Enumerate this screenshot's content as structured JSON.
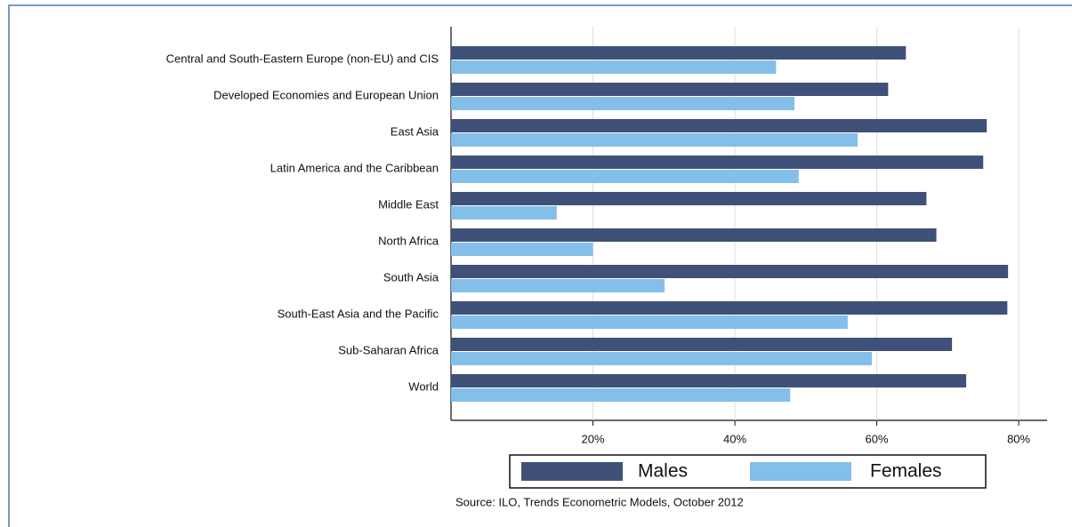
{
  "chart_data": {
    "type": "barh",
    "categories": [
      "Central and South-Eastern Europe (non-EU) and CIS",
      "Developed Economies and European Union",
      "East Asia",
      "Latin America and the Caribbean",
      "Middle East",
      "North Africa",
      "South Asia",
      "South-East Asia and the Pacific",
      "Sub-Saharan Africa",
      "World"
    ],
    "series": [
      {
        "name": "Males",
        "color": "#3f5179",
        "values": [
          64.1,
          61.6,
          75.5,
          75,
          67,
          68.4,
          78.5,
          78.4,
          70.6,
          72.6
        ]
      },
      {
        "name": "Females",
        "color": "#84bfe9",
        "values": [
          45.8,
          48.4,
          57.3,
          49,
          14.9,
          20,
          30.1,
          55.9,
          59.3,
          47.8
        ]
      }
    ],
    "xlim": [
      0,
      84
    ],
    "xticks": [
      {
        "value": 20,
        "label": "20%"
      },
      {
        "value": 40,
        "label": "40%"
      },
      {
        "value": 60,
        "label": "60%"
      },
      {
        "value": 80,
        "label": "80%"
      }
    ],
    "legend": "bottom",
    "source": "Source: ILO, Trends Econometric Models, October 2012"
  }
}
